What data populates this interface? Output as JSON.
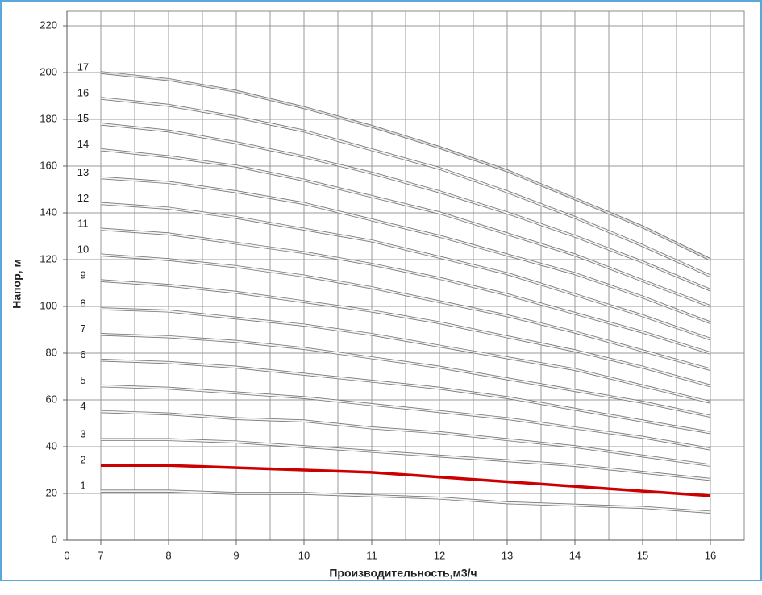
{
  "chart_data": {
    "type": "line",
    "x_label": "Производительность,м3/ч",
    "y_label": "Напор, м",
    "x_axis_start_label": "0",
    "x": [
      7,
      8,
      9,
      10,
      11,
      12,
      13,
      14,
      15,
      16
    ],
    "xlim": [
      6.5,
      16.5
    ],
    "xticks": [
      7,
      8,
      9,
      10,
      11,
      12,
      13,
      14,
      15,
      16
    ],
    "ylim": [
      0,
      220
    ],
    "yticks": [
      0,
      20,
      40,
      60,
      80,
      100,
      120,
      140,
      160,
      180,
      200,
      220
    ],
    "grid": true,
    "minor_x_grid": true,
    "series": [
      {
        "name": "1",
        "color": "#f4f4f4",
        "values": [
          21,
          21,
          20,
          20,
          19,
          18,
          16,
          15,
          14,
          12
        ]
      },
      {
        "name": "2",
        "color": "#cc0000",
        "values": [
          32,
          32,
          31,
          30,
          29,
          27,
          25,
          23,
          21,
          19
        ]
      },
      {
        "name": "3",
        "color": "#f4f4f4",
        "values": [
          43,
          43,
          42,
          40,
          38,
          36,
          34,
          32,
          29,
          26
        ]
      },
      {
        "name": "4",
        "color": "#f4f4f4",
        "values": [
          55,
          54,
          52,
          51,
          48,
          46,
          43,
          40,
          36,
          32
        ]
      },
      {
        "name": "5",
        "color": "#f4f4f4",
        "values": [
          66,
          65,
          63,
          61,
          58,
          55,
          52,
          48,
          44,
          39
        ]
      },
      {
        "name": "6",
        "color": "#f4f4f4",
        "values": [
          77,
          76,
          74,
          71,
          68,
          65,
          61,
          56,
          51,
          46
        ]
      },
      {
        "name": "7",
        "color": "#f4f4f4",
        "values": [
          88,
          87,
          85,
          82,
          78,
          74,
          69,
          64,
          59,
          53
        ]
      },
      {
        "name": "8",
        "color": "#f4f4f4",
        "values": [
          99,
          98,
          95,
          92,
          88,
          83,
          78,
          73,
          66,
          59
        ]
      },
      {
        "name": "9",
        "color": "#f4f4f4",
        "values": [
          111,
          109,
          106,
          102,
          98,
          93,
          87,
          81,
          74,
          66
        ]
      },
      {
        "name": "10",
        "color": "#f4f4f4",
        "values": [
          122,
          120,
          117,
          113,
          108,
          102,
          96,
          89,
          81,
          73
        ]
      },
      {
        "name": "11",
        "color": "#f4f4f4",
        "values": [
          133,
          131,
          127,
          123,
          118,
          112,
          105,
          97,
          89,
          80
        ]
      },
      {
        "name": "12",
        "color": "#f4f4f4",
        "values": [
          144,
          142,
          138,
          133,
          128,
          121,
          114,
          105,
          96,
          86
        ]
      },
      {
        "name": "13",
        "color": "#f4f4f4",
        "values": [
          155,
          153,
          149,
          144,
          137,
          130,
          122,
          114,
          104,
          93
        ]
      },
      {
        "name": "14",
        "color": "#f4f4f4",
        "values": [
          167,
          164,
          160,
          154,
          147,
          140,
          131,
          122,
          111,
          100
        ]
      },
      {
        "name": "15",
        "color": "#f4f4f4",
        "values": [
          178,
          175,
          170,
          164,
          157,
          149,
          140,
          130,
          119,
          107
        ]
      },
      {
        "name": "16",
        "color": "#f4f4f4",
        "values": [
          189,
          186,
          181,
          175,
          167,
          159,
          149,
          138,
          126,
          113
        ]
      },
      {
        "name": "17",
        "color": "#e0e0e0",
        "values": [
          200,
          197,
          192,
          185,
          177,
          168,
          158,
          146,
          134,
          120
        ]
      }
    ]
  }
}
